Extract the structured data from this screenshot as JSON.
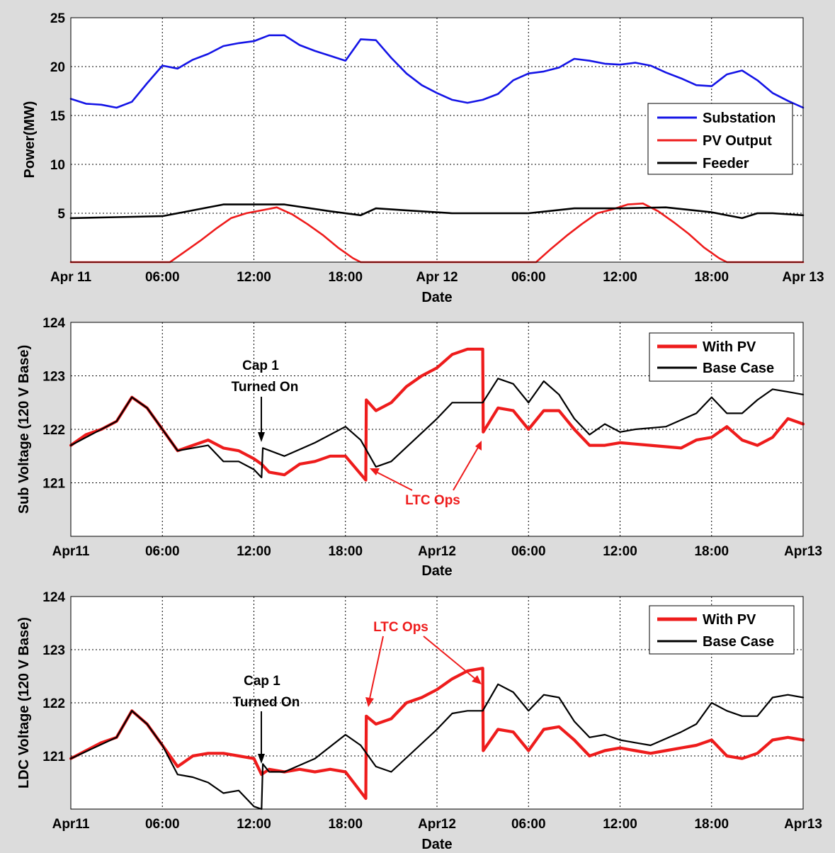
{
  "chart_data": [
    {
      "type": "line",
      "xlabel": "Date",
      "ylabel": "Power(MW)",
      "xlim": [
        "2013-04-11 00:00",
        "2013-04-13 00:00"
      ],
      "ylim": [
        0,
        25
      ],
      "yticks": [
        5,
        10,
        15,
        20,
        25
      ],
      "xticklabels": [
        "Apr 11",
        "06:00",
        "12:00",
        "18:00",
        "Apr 12",
        "06:00",
        "12:00",
        "18:00",
        "Apr 13"
      ],
      "grid": true,
      "legend_position": "right",
      "series": [
        {
          "name": "Substation",
          "color": "#1414e6",
          "x": [
            "04-11 00:00",
            "04-11 01:00",
            "04-11 02:00",
            "04-11 03:00",
            "04-11 04:00",
            "04-11 05:00",
            "04-11 06:00",
            "04-11 07:00",
            "04-11 08:00",
            "04-11 09:00",
            "04-11 10:00",
            "04-11 11:00",
            "04-11 12:00",
            "04-11 13:00",
            "04-11 14:00",
            "04-11 15:00",
            "04-11 16:00",
            "04-11 17:00",
            "04-11 18:00",
            "04-11 19:00",
            "04-11 20:00",
            "04-11 21:00",
            "04-11 22:00",
            "04-11 23:00",
            "04-12 00:00",
            "04-12 01:00",
            "04-12 02:00",
            "04-12 03:00",
            "04-12 04:00",
            "04-12 05:00",
            "04-12 06:00",
            "04-12 07:00",
            "04-12 08:00",
            "04-12 09:00",
            "04-12 10:00",
            "04-12 11:00",
            "04-12 12:00",
            "04-12 13:00",
            "04-12 14:00",
            "04-12 15:00",
            "04-12 16:00",
            "04-12 17:00",
            "04-12 18:00",
            "04-12 19:00",
            "04-12 20:00",
            "04-12 21:00",
            "04-12 22:00",
            "04-12 23:00",
            "04-13 00:00"
          ],
          "y": [
            16.7,
            16.2,
            16.1,
            15.8,
            16.4,
            18.3,
            20.1,
            19.8,
            20.7,
            21.3,
            22.1,
            22.4,
            22.6,
            23.2,
            23.2,
            22.2,
            21.6,
            21.1,
            20.6,
            22.8,
            22.7,
            20.9,
            19.3,
            18.1,
            17.3,
            16.6,
            16.3,
            16.6,
            17.2,
            18.6,
            19.3,
            19.5,
            19.9,
            20.8,
            20.6,
            20.3,
            20.2,
            20.4,
            20.1,
            19.4,
            18.8,
            18.1,
            18.0,
            19.2,
            19.6,
            18.6,
            17.3,
            16.5,
            15.8
          ]
        },
        {
          "name": "PV Output",
          "color": "#ee1c1c",
          "x": [
            "04-11 00:00",
            "04-11 06:30",
            "04-11 07:30",
            "04-11 08:30",
            "04-11 09:30",
            "04-11 10:30",
            "04-11 11:30",
            "04-11 12:30",
            "04-11 13:30",
            "04-11 14:30",
            "04-11 15:30",
            "04-11 16:30",
            "04-11 17:30",
            "04-11 18:30",
            "04-11 19:00",
            "04-12 06:30",
            "04-12 07:30",
            "04-12 08:30",
            "04-12 09:30",
            "04-12 10:30",
            "04-12 11:30",
            "04-12 12:30",
            "04-12 13:30",
            "04-12 14:30",
            "04-12 15:30",
            "04-12 16:30",
            "04-12 17:30",
            "04-12 18:30",
            "04-12 19:00",
            "04-13 00:00"
          ],
          "y": [
            0,
            0,
            1.1,
            2.2,
            3.4,
            4.5,
            5.0,
            5.3,
            5.6,
            4.9,
            3.9,
            2.8,
            1.5,
            0.4,
            0,
            0,
            1.4,
            2.7,
            3.9,
            5.0,
            5.4,
            5.9,
            6.0,
            5.2,
            4.1,
            2.9,
            1.5,
            0.4,
            0,
            0
          ]
        },
        {
          "name": "Feeder",
          "color": "#000000",
          "x": [
            "04-11 00:00",
            "04-11 03:00",
            "04-11 06:00",
            "04-11 08:00",
            "04-11 10:00",
            "04-11 14:00",
            "04-11 17:00",
            "04-11 19:00",
            "04-11 20:00",
            "04-11 22:00",
            "04-12 01:00",
            "04-12 06:00",
            "04-12 09:00",
            "04-12 12:00",
            "04-12 15:00",
            "04-12 18:00",
            "04-12 20:00",
            "04-12 21:00",
            "04-12 22:00",
            "04-13 00:00"
          ],
          "y": [
            4.5,
            4.6,
            4.7,
            5.3,
            5.9,
            5.9,
            5.2,
            4.8,
            5.5,
            5.3,
            5.0,
            5.0,
            5.5,
            5.5,
            5.6,
            5.1,
            4.5,
            5.0,
            5.0,
            4.8
          ]
        }
      ]
    },
    {
      "type": "line",
      "xlabel": "Date",
      "ylabel": "Sub Voltage (120 V Base)",
      "xlim": [
        "2013-04-11 00:00",
        "2013-04-13 00:00"
      ],
      "ylim": [
        120,
        124
      ],
      "yticks": [
        121,
        122,
        123,
        124
      ],
      "xticklabels": [
        "Apr11",
        "06:00",
        "12:00",
        "18:00",
        "Apr12",
        "06:00",
        "12:00",
        "18:00",
        "Apr13"
      ],
      "grid": true,
      "legend_position": "top-right",
      "annotations": [
        {
          "text": "Cap 1\nTurned On",
          "color": "#000000"
        },
        {
          "text": "LTC Ops",
          "color": "#ee1c1c"
        }
      ],
      "series": [
        {
          "name": "With PV",
          "color": "#ee1c1c",
          "x": [
            "04-11 00:00",
            "04-11 01:00",
            "04-11 02:00",
            "04-11 03:00",
            "04-11 04:00",
            "04-11 05:00",
            "04-11 06:00",
            "04-11 07:00",
            "04-11 08:00",
            "04-11 09:00",
            "04-11 10:00",
            "04-11 11:00",
            "04-11 12:00",
            "04-11 12:30",
            "04-11 13:00",
            "04-11 14:00",
            "04-11 15:00",
            "04-11 16:00",
            "04-11 17:00",
            "04-11 18:00",
            "04-11 19:20",
            "04-11 19:22",
            "04-11 20:00",
            "04-11 21:00",
            "04-11 22:00",
            "04-11 23:00",
            "04-12 00:00",
            "04-12 01:00",
            "04-12 02:00",
            "04-12 03:00",
            "04-12 03:02",
            "04-12 04:00",
            "04-12 05:00",
            "04-12 06:00",
            "04-12 07:00",
            "04-12 08:00",
            "04-12 09:00",
            "04-12 10:00",
            "04-12 11:00",
            "04-12 12:00",
            "04-12 14:00",
            "04-12 16:00",
            "04-12 17:00",
            "04-12 18:00",
            "04-12 19:00",
            "04-12 20:00",
            "04-12 21:00",
            "04-12 22:00",
            "04-12 23:00",
            "04-13 00:00"
          ],
          "y": [
            121.7,
            121.9,
            122.0,
            122.15,
            122.6,
            122.4,
            122.0,
            121.6,
            121.7,
            121.8,
            121.65,
            121.6,
            121.45,
            121.35,
            121.2,
            121.15,
            121.35,
            121.4,
            121.5,
            121.5,
            121.05,
            122.55,
            122.35,
            122.5,
            122.8,
            123.0,
            123.15,
            123.4,
            123.5,
            123.5,
            121.95,
            122.4,
            122.35,
            122.0,
            122.35,
            122.35,
            122.0,
            121.7,
            121.7,
            121.75,
            121.7,
            121.65,
            121.8,
            121.85,
            122.05,
            121.8,
            121.7,
            121.85,
            122.2,
            122.1
          ]
        },
        {
          "name": "Base Case",
          "color": "#000000",
          "x": [
            "04-11 00:00",
            "04-11 03:00",
            "04-11 04:00",
            "04-11 05:00",
            "04-11 06:00",
            "04-11 07:00",
            "04-11 09:00",
            "04-11 10:00",
            "04-11 11:00",
            "04-11 12:00",
            "04-11 12:30",
            "04-11 12:35",
            "04-11 14:00",
            "04-11 16:00",
            "04-11 18:00",
            "04-11 19:00",
            "04-11 20:00",
            "04-11 21:00",
            "04-12 00:00",
            "04-12 01:00",
            "04-12 02:00",
            "04-12 03:00",
            "04-12 04:00",
            "04-12 05:00",
            "04-12 06:00",
            "04-12 07:00",
            "04-12 08:00",
            "04-12 09:00",
            "04-12 10:00",
            "04-12 11:00",
            "04-12 12:00",
            "04-12 13:00",
            "04-12 15:00",
            "04-12 17:00",
            "04-12 18:00",
            "04-12 19:00",
            "04-12 20:00",
            "04-12 21:00",
            "04-12 22:00",
            "04-12 23:00",
            "04-13 00:00"
          ],
          "y": [
            121.7,
            122.15,
            122.6,
            122.4,
            122.0,
            121.6,
            121.7,
            121.4,
            121.4,
            121.25,
            121.1,
            121.65,
            121.5,
            121.75,
            122.05,
            121.8,
            121.3,
            121.4,
            122.2,
            122.5,
            122.5,
            122.5,
            122.95,
            122.85,
            122.5,
            122.9,
            122.65,
            122.2,
            121.9,
            122.1,
            121.95,
            122.0,
            122.05,
            122.3,
            122.6,
            122.3,
            122.3,
            122.55,
            122.75,
            122.7,
            122.65
          ]
        }
      ]
    },
    {
      "type": "line",
      "xlabel": "Date",
      "ylabel": "LDC Voltage (120 V Base)",
      "xlim": [
        "2013-04-11 00:00",
        "2013-04-13 00:00"
      ],
      "ylim": [
        120,
        124
      ],
      "yticks": [
        121,
        122,
        123,
        124
      ],
      "xticklabels": [
        "Apr11",
        "06:00",
        "12:00",
        "18:00",
        "Apr12",
        "06:00",
        "12:00",
        "18:00",
        "Apr13"
      ],
      "grid": true,
      "legend_position": "top-right",
      "annotations": [
        {
          "text": "Cap 1\nTurned On",
          "color": "#000000"
        },
        {
          "text": "LTC Ops",
          "color": "#ee1c1c"
        }
      ],
      "series": [
        {
          "name": "With PV",
          "color": "#ee1c1c",
          "x": [
            "04-11 00:00",
            "04-11 01:00",
            "04-11 02:00",
            "04-11 03:00",
            "04-11 04:00",
            "04-11 05:00",
            "04-11 06:00",
            "04-11 07:00",
            "04-11 08:00",
            "04-11 09:00",
            "04-11 10:00",
            "04-11 11:00",
            "04-11 12:00",
            "04-11 12:30",
            "04-11 13:00",
            "04-11 14:00",
            "04-11 15:00",
            "04-11 16:00",
            "04-11 17:00",
            "04-11 18:00",
            "04-11 19:20",
            "04-11 19:22",
            "04-11 20:00",
            "04-11 21:00",
            "04-11 22:00",
            "04-11 23:00",
            "04-12 00:00",
            "04-12 01:00",
            "04-12 02:00",
            "04-12 03:00",
            "04-12 03:02",
            "04-12 04:00",
            "04-12 05:00",
            "04-12 06:00",
            "04-12 07:00",
            "04-12 08:00",
            "04-12 09:00",
            "04-12 10:00",
            "04-12 11:00",
            "04-12 12:00",
            "04-12 13:00",
            "04-12 14:00",
            "04-12 15:00",
            "04-12 16:00",
            "04-12 17:00",
            "04-12 18:00",
            "04-12 19:00",
            "04-12 20:00",
            "04-12 21:00",
            "04-12 22:00",
            "04-12 23:00",
            "04-13 00:00"
          ],
          "y": [
            120.95,
            121.1,
            121.25,
            121.35,
            121.85,
            121.6,
            121.2,
            120.8,
            121.0,
            121.05,
            121.05,
            121.0,
            120.95,
            120.65,
            120.75,
            120.7,
            120.75,
            120.7,
            120.75,
            120.7,
            120.2,
            121.75,
            121.6,
            121.7,
            122.0,
            122.1,
            122.25,
            122.45,
            122.6,
            122.65,
            121.1,
            121.5,
            121.45,
            121.1,
            121.5,
            121.55,
            121.3,
            121.0,
            121.1,
            121.15,
            121.1,
            121.05,
            121.1,
            121.15,
            121.2,
            121.3,
            121.0,
            120.95,
            121.05,
            121.3,
            121.35,
            121.3
          ]
        },
        {
          "name": "Base Case",
          "color": "#000000",
          "x": [
            "04-11 00:00",
            "04-11 03:00",
            "04-11 04:00",
            "04-11 05:00",
            "04-11 06:00",
            "04-11 07:00",
            "04-11 08:00",
            "04-11 09:00",
            "04-11 10:00",
            "04-11 11:00",
            "04-11 12:00",
            "04-11 12:30",
            "04-11 12:35",
            "04-11 13:00",
            "04-11 14:00",
            "04-11 16:00",
            "04-11 18:00",
            "04-11 19:00",
            "04-11 20:00",
            "04-11 21:00",
            "04-12 00:00",
            "04-12 01:00",
            "04-12 02:00",
            "04-12 03:00",
            "04-12 04:00",
            "04-12 05:00",
            "04-12 06:00",
            "04-12 07:00",
            "04-12 08:00",
            "04-12 09:00",
            "04-12 10:00",
            "04-12 11:00",
            "04-12 12:00",
            "04-12 13:00",
            "04-12 14:00",
            "04-12 16:00",
            "04-12 17:00",
            "04-12 18:00",
            "04-12 19:00",
            "04-12 20:00",
            "04-12 21:00",
            "04-12 22:00",
            "04-12 23:00",
            "04-13 00:00"
          ],
          "y": [
            120.95,
            121.35,
            121.85,
            121.6,
            121.2,
            120.65,
            120.6,
            120.5,
            120.3,
            120.35,
            120.05,
            120.0,
            120.85,
            120.7,
            120.7,
            120.95,
            121.4,
            121.2,
            120.8,
            120.7,
            121.5,
            121.8,
            121.85,
            121.85,
            122.35,
            122.2,
            121.85,
            122.15,
            122.1,
            121.65,
            121.35,
            121.4,
            121.3,
            121.25,
            121.2,
            121.45,
            121.6,
            122.0,
            121.85,
            121.75,
            121.75,
            122.1,
            122.15,
            122.1
          ]
        }
      ]
    }
  ]
}
